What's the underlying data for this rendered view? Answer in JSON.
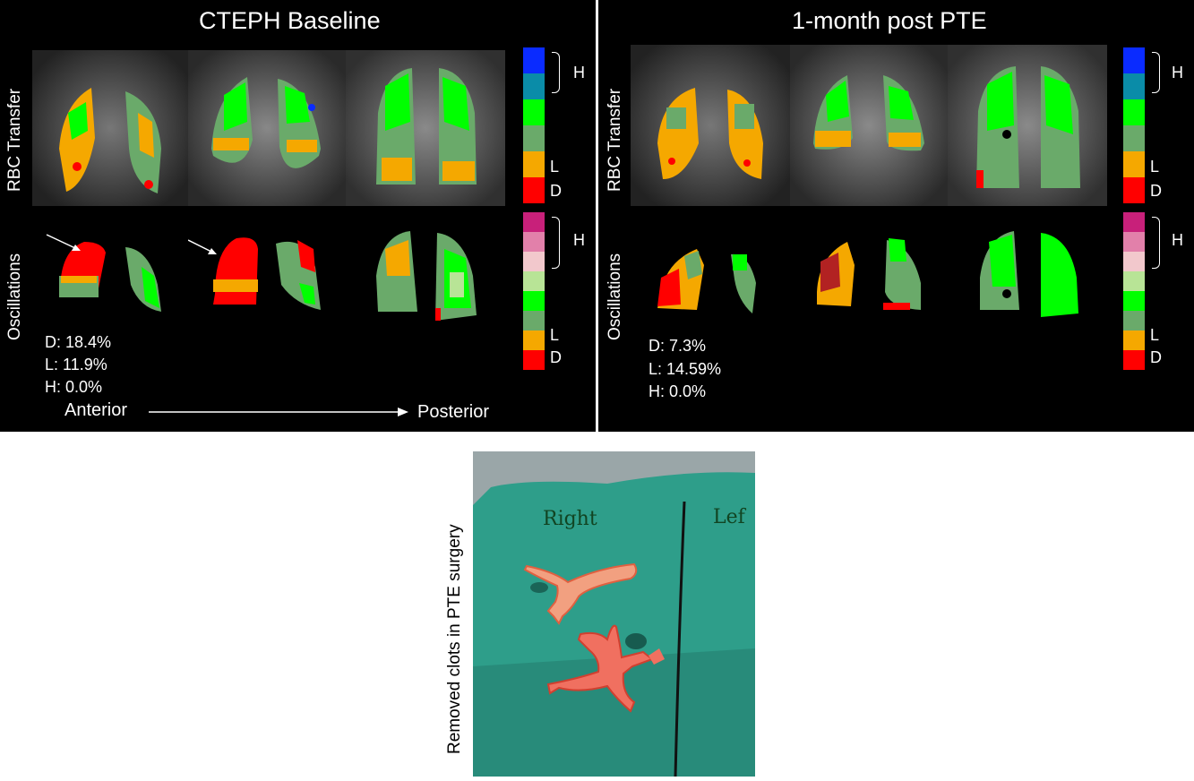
{
  "panels": [
    {
      "title": "CTEPH Baseline",
      "row_labels": [
        "RBC Transfer",
        "Oscillations"
      ],
      "stats": [
        "D: 18.4%",
        "L: 11.9%",
        "H: 0.0%"
      ],
      "direction": {
        "start": "Anterior",
        "end": "Posterior"
      }
    },
    {
      "title": "1-month post PTE",
      "row_labels": [
        "RBC Transfer",
        "Oscillations"
      ],
      "stats": [
        "D: 7.3%",
        "L: 14.59%",
        "H: 0.0%"
      ]
    }
  ],
  "colorbars": {
    "rbc": {
      "colors": [
        "#0a2bff",
        "#0a8ca8",
        "#00ff00",
        "#6aaa6a",
        "#f5a800",
        "#ff0000"
      ],
      "labels": {
        "high": "H",
        "low": "L",
        "defect": "D"
      }
    },
    "osc": {
      "colors": [
        "#c8207a",
        "#e280aa",
        "#f2c8cc",
        "#b8e496",
        "#00ff00",
        "#6aaa6a",
        "#f5a800",
        "#ff0000"
      ],
      "labels": {
        "high": "H",
        "low": "L",
        "defect": "D"
      }
    }
  },
  "photo": {
    "caption": "Removed clots in PTE surgery",
    "writing_right": "Right",
    "writing_left": "Lef"
  }
}
